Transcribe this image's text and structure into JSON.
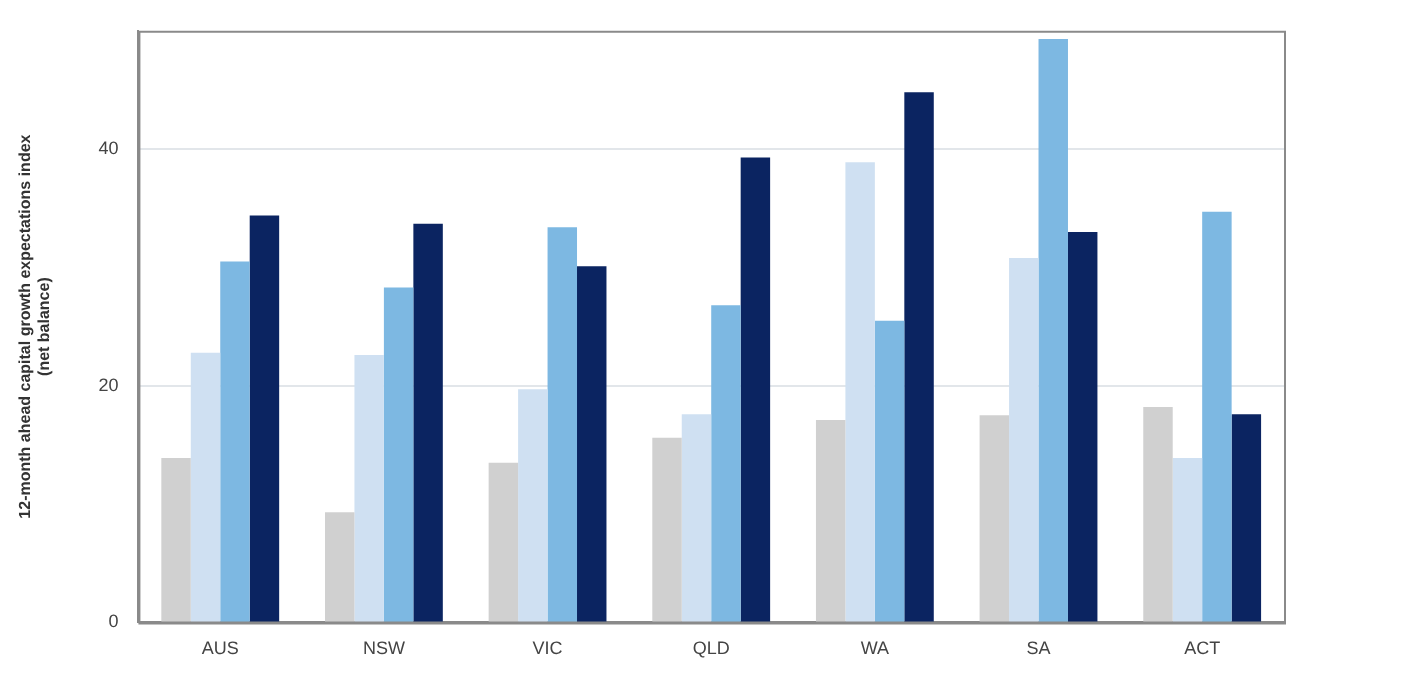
{
  "chart_data": {
    "type": "bar",
    "ylabel": "12-month ahead capital growth expectations index\n(net balance)",
    "categories": [
      "AUS",
      "NSW",
      "VIC",
      "QLD",
      "WA",
      "SA",
      "ACT"
    ],
    "series": [
      {
        "color": "#d0d0d0",
        "values": [
          13.9,
          9.3,
          13.5,
          15.6,
          17.1,
          17.5,
          18.2
        ]
      },
      {
        "color": "#cfe0f2",
        "values": [
          22.8,
          22.6,
          19.7,
          17.6,
          38.9,
          30.8,
          13.9
        ]
      },
      {
        "color": "#7db8e2",
        "values": [
          30.5,
          28.3,
          33.4,
          26.8,
          25.5,
          49.3,
          34.7
        ]
      },
      {
        "color": "#0b2461",
        "values": [
          34.4,
          33.7,
          30.1,
          39.3,
          44.8,
          33.0,
          17.6
        ]
      }
    ],
    "ylim": [
      0,
      50
    ],
    "yticks": [
      0,
      20,
      40
    ],
    "grid": "y",
    "legend": false
  }
}
